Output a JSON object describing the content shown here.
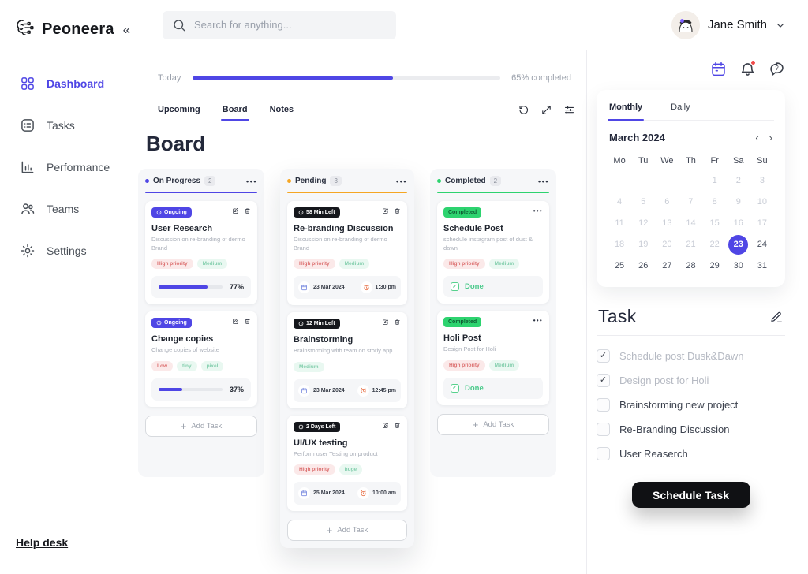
{
  "brand": {
    "name": "Peoneera"
  },
  "glyphs": {
    "collapse": "«",
    "kebab": "•••",
    "plus": "+",
    "check": "✓",
    "prev": "‹",
    "next": "›"
  },
  "header": {
    "search_placeholder": "Search for anything...",
    "user_name": "Jane Smith"
  },
  "sidebar": {
    "items": [
      {
        "label": "Dashboard",
        "icon": "grid-icon",
        "active": true
      },
      {
        "label": "Tasks",
        "icon": "tasks-icon",
        "active": false
      },
      {
        "label": "Performance",
        "icon": "bar-chart-icon",
        "active": false
      },
      {
        "label": "Teams",
        "icon": "users-icon",
        "active": false
      },
      {
        "label": "Settings",
        "icon": "gear-icon",
        "active": false
      }
    ],
    "footer_link": "Help desk"
  },
  "progress": {
    "label": "Today",
    "percent": 65,
    "completed_text": "65% completed"
  },
  "view_tabs": [
    {
      "label": "Upcoming",
      "active": false
    },
    {
      "label": "Board",
      "active": true
    },
    {
      "label": "Notes",
      "active": false
    }
  ],
  "board": {
    "title": "Board",
    "columns": [
      {
        "name": "On Progress",
        "count": "2",
        "accent": "#4f46e5",
        "add_label": "Add Task",
        "cards": [
          {
            "badge": "Ongoing",
            "badge_type": "ongoing",
            "title": "User Research",
            "description": "Discussion on re-branding of dermo Brand",
            "tags": [
              {
                "label": "High priority",
                "type": "red"
              },
              {
                "label": "Medium",
                "type": "green"
              }
            ],
            "progress": 77,
            "progress_text": "77%"
          },
          {
            "badge": "Ongoing",
            "badge_type": "ongoing",
            "title": "Change copies",
            "description": "Change copies of website",
            "tags": [
              {
                "label": "Low",
                "type": "red"
              },
              {
                "label": "tiny",
                "type": "green"
              },
              {
                "label": "pixel",
                "type": "green"
              }
            ],
            "progress": 37,
            "progress_text": "37%"
          }
        ]
      },
      {
        "name": "Pending",
        "count": "3",
        "accent": "#f5a623",
        "add_label": "Add Task",
        "cards": [
          {
            "badge": "58 Min Left",
            "badge_type": "countdown",
            "title": "Re-branding Discussion",
            "description": "Discussion on re-branding of dermo Brand",
            "tags": [
              {
                "label": "High priority",
                "type": "red"
              },
              {
                "label": "Medium",
                "type": "green"
              }
            ],
            "date": "23 Mar 2024",
            "time": "1:30 pm"
          },
          {
            "badge": "12 Min Left",
            "badge_type": "countdown",
            "title": "Brainstorming",
            "description": "Brainstorming with team on storly app",
            "tags": [
              {
                "label": "Medium",
                "type": "green"
              }
            ],
            "date": "23 Mar 2024",
            "time": "12:45 pm"
          },
          {
            "badge": "2 Days Left",
            "badge_type": "countdown",
            "title": "UI/UX testing",
            "description": "Perform user Testing on product",
            "tags": [
              {
                "label": "High priority",
                "type": "red"
              },
              {
                "label": "huge",
                "type": "green"
              }
            ],
            "date": "25 Mar 2024",
            "time": "10:00 am"
          }
        ]
      },
      {
        "name": "Completed",
        "count": "2",
        "accent": "#2dd36f",
        "add_label": "Add Task",
        "cards": [
          {
            "badge": "Completed",
            "badge_type": "completed",
            "title": "Schedule Post",
            "description": "schedule instagram post of dust & dawn",
            "tags": [
              {
                "label": "High priority",
                "type": "red"
              },
              {
                "label": "Medium",
                "type": "green"
              }
            ],
            "done_label": "Done"
          },
          {
            "badge": "Completed",
            "badge_type": "completed",
            "title": "Holi Post",
            "description": "Design Post for Holi",
            "tags": [
              {
                "label": "High priority",
                "type": "red"
              },
              {
                "label": "Medium",
                "type": "green"
              }
            ],
            "done_label": "Done"
          }
        ]
      }
    ]
  },
  "right_panel": {
    "icons": [
      "calendar-icon",
      "notifications-bell-icon",
      "help-chat-icon"
    ]
  },
  "calendar": {
    "tabs": [
      {
        "label": "Monthly",
        "active": true
      },
      {
        "label": "Daily",
        "active": false
      }
    ],
    "month_title": "March 2024",
    "weekdays": [
      "Mo",
      "Tu",
      "We",
      "Th",
      "Fr",
      "Sa",
      "Su"
    ],
    "weeks": [
      [
        "",
        "",
        "",
        "",
        "1",
        "2",
        "3"
      ],
      [
        "4",
        "5",
        "6",
        "7",
        "8",
        "9",
        "10"
      ],
      [
        "11",
        "12",
        "13",
        "14",
        "15",
        "16",
        "17"
      ],
      [
        "18",
        "19",
        "20",
        "21",
        "22",
        "23",
        "24"
      ],
      [
        "25",
        "26",
        "27",
        "28",
        "29",
        "30",
        "31"
      ]
    ],
    "selected_day": "23",
    "muted_through": 22
  },
  "task_panel": {
    "title": "Task",
    "items": [
      {
        "label": "Schedule post Dusk&Dawn",
        "checked": true
      },
      {
        "label": "Design post for Holi",
        "checked": true
      },
      {
        "label": "Brainstorming new project",
        "checked": false
      },
      {
        "label": "Re-Branding Discussion",
        "checked": false
      },
      {
        "label": "User Reaserch",
        "checked": false
      }
    ],
    "button": "Schedule Task"
  },
  "colors": {
    "accent": "#4f46e5",
    "pending": "#f5a623",
    "completed": "#2dd36f",
    "badge_dark": "#15171c"
  }
}
